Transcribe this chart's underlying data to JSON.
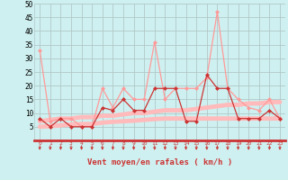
{
  "x_labels": [
    0,
    1,
    2,
    3,
    4,
    5,
    6,
    7,
    8,
    9,
    10,
    11,
    12,
    13,
    14,
    15,
    16,
    17,
    18,
    19,
    20,
    21,
    22,
    23
  ],
  "wind_gust": [
    33,
    7,
    8,
    8,
    5,
    5,
    19,
    12,
    19,
    15,
    15,
    36,
    15,
    19,
    19,
    19,
    23,
    47,
    19,
    15,
    12,
    11,
    15,
    8
  ],
  "wind_avg": [
    8,
    5,
    8,
    5,
    5,
    5,
    12,
    11,
    15,
    11,
    11,
    19,
    19,
    19,
    7,
    7,
    24,
    19,
    19,
    8,
    8,
    8,
    11,
    8
  ],
  "trend_gust": [
    7,
    7.5,
    8,
    8,
    8.5,
    8.5,
    9,
    9,
    9.5,
    10,
    10,
    10.5,
    11,
    11,
    11,
    11.5,
    12,
    12.5,
    13,
    13,
    13.5,
    13.5,
    14,
    14
  ],
  "trend_avg": [
    5,
    5.2,
    5.5,
    5.8,
    6,
    6,
    6.5,
    6.8,
    7,
    7.2,
    7.5,
    7.8,
    8,
    8,
    8,
    8,
    8,
    8,
    8,
    8,
    8,
    8,
    8,
    8
  ],
  "bg_color": "#cff0f0",
  "grid_color": "#b0c8c8",
  "line_color_gust": "#ff9999",
  "line_color_avg": "#cc3333",
  "line_color_trend_gust": "#ffbbbb",
  "line_color_trend_avg": "#ffbbbb",
  "xlabel": "Vent moyen/en rafales ( km/h )",
  "ylim": [
    0,
    50
  ],
  "yticks": [
    0,
    5,
    10,
    15,
    20,
    25,
    30,
    35,
    40,
    45,
    50
  ]
}
